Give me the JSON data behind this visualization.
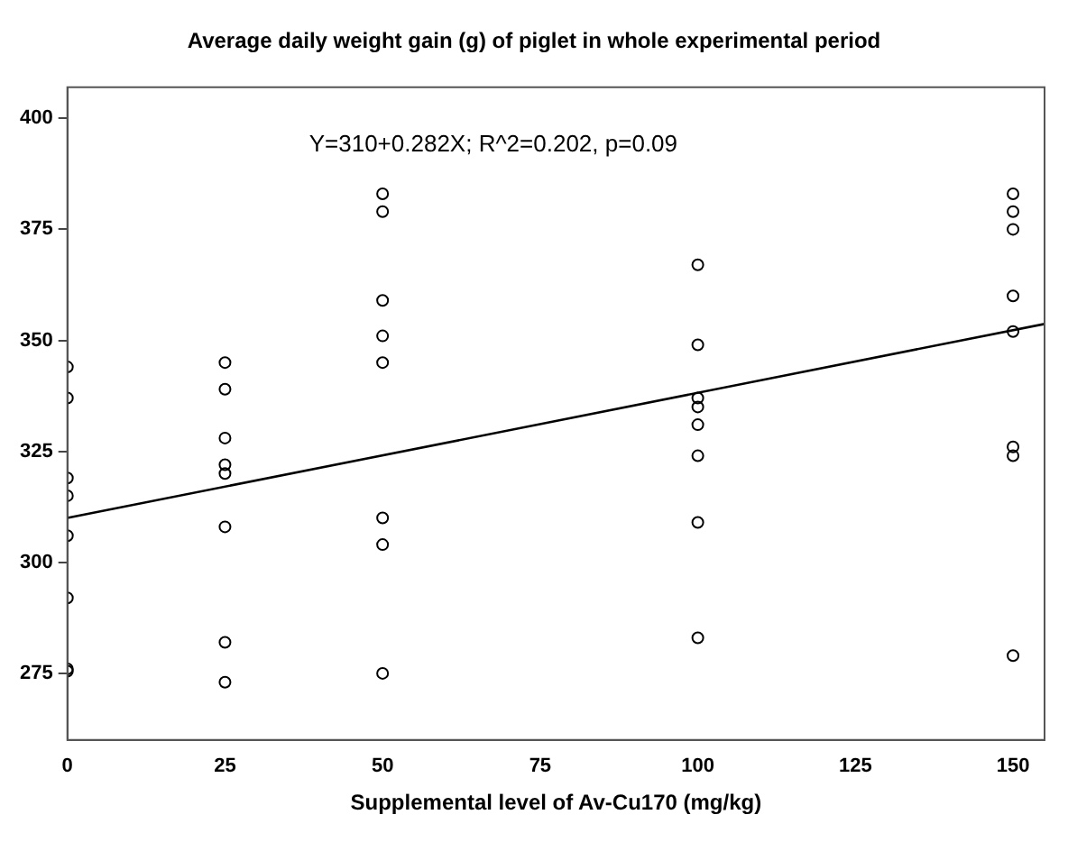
{
  "chart_data": {
    "type": "scatter",
    "title": "Average daily weight gain (g) of piglet in whole experimental period",
    "xlabel": "Supplemental level of Av-Cu170 (mg/kg)",
    "annotations": [
      "Y=310+0.282X; R^2=0.202, p=0.09"
    ],
    "series": [
      {
        "color": "#000000",
        "marker": "circle",
        "x": [
          0,
          0,
          0,
          0,
          0,
          0,
          0,
          0,
          25,
          25,
          25,
          25,
          25,
          25,
          25,
          25,
          50,
          50,
          50,
          50,
          50,
          50,
          50,
          50,
          100,
          100,
          100,
          100,
          100,
          100,
          100,
          100,
          150,
          150,
          150,
          150,
          150,
          150,
          150,
          150
        ],
        "values": [
          344,
          337,
          319,
          315,
          306,
          292,
          276,
          275.5,
          345,
          339,
          328,
          322,
          320,
          308,
          282,
          273,
          383,
          379,
          359,
          351,
          345,
          310,
          304,
          275,
          367,
          349,
          337,
          335,
          331,
          324,
          309,
          283,
          383,
          379,
          375,
          360,
          352,
          326,
          324,
          279
        ]
      },
      {
        "type": "line",
        "color": "#000000",
        "marker": "none",
        "x": [
          0,
          155
        ],
        "values": [
          310,
          353.7
        ]
      }
    ],
    "xlim": [
      0,
      155
    ],
    "xticks": [
      0,
      25,
      50,
      75,
      100,
      125,
      150
    ],
    "ylim": [
      260,
      407
    ],
    "yticks": [
      275,
      300,
      325,
      350,
      375,
      400
    ],
    "grid": false,
    "legend": false
  }
}
